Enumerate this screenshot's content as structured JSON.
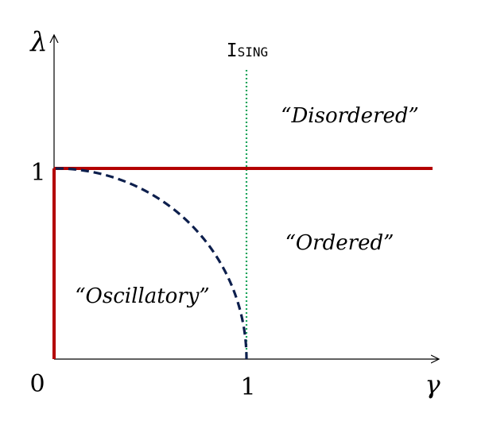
{
  "diagram": {
    "axes": {
      "x_label": "γ",
      "y_label": "λ",
      "origin_label": "0",
      "x_tick_label": "1",
      "y_tick_label": "1"
    },
    "line_labels": {
      "ising": "Ising"
    },
    "regions": {
      "disordered": "“Disordered”",
      "ordered": "“Ordered”",
      "oscillatory": "“Oscillatory”"
    },
    "colors": {
      "axis": "#000000",
      "phase_boundary": "#b30000",
      "oscillatory_boundary": "#0d1f4d",
      "ising_line": "#19a35a"
    }
  }
}
